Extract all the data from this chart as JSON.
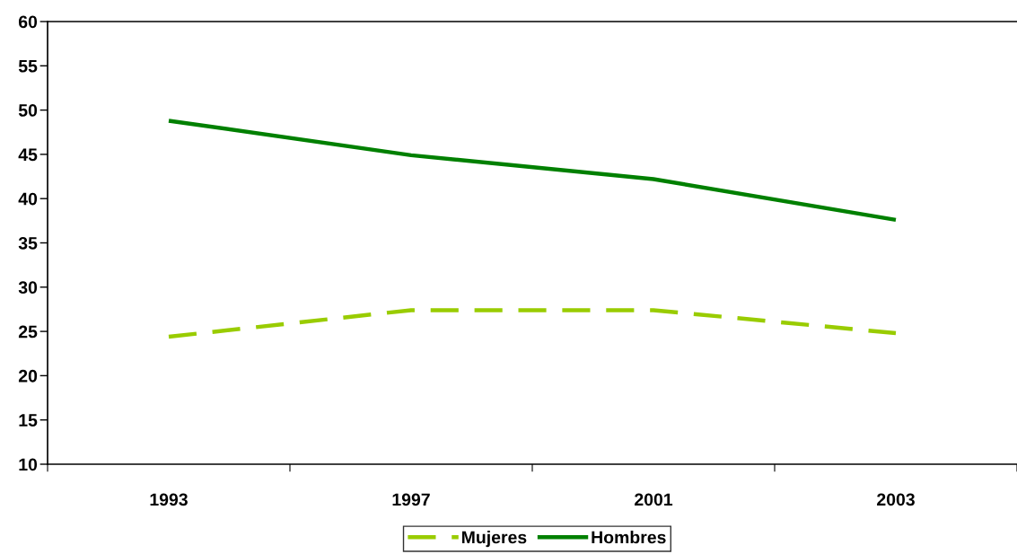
{
  "chart_data": {
    "type": "line",
    "categories": [
      "1993",
      "1997",
      "2001",
      "2003"
    ],
    "series": [
      {
        "name": "Mujeres",
        "color": "#99cc00",
        "values": [
          24.4,
          27.4,
          27.4,
          24.8
        ],
        "line_style": "dashed"
      },
      {
        "name": "Hombres",
        "color": "#008000",
        "values": [
          48.8,
          44.9,
          42.2,
          37.6
        ],
        "line_style": "solid"
      }
    ],
    "ylim": [
      10,
      60
    ],
    "yticks": [
      10,
      15,
      20,
      25,
      30,
      35,
      40,
      45,
      50,
      55,
      60
    ],
    "legend": "bottom"
  }
}
